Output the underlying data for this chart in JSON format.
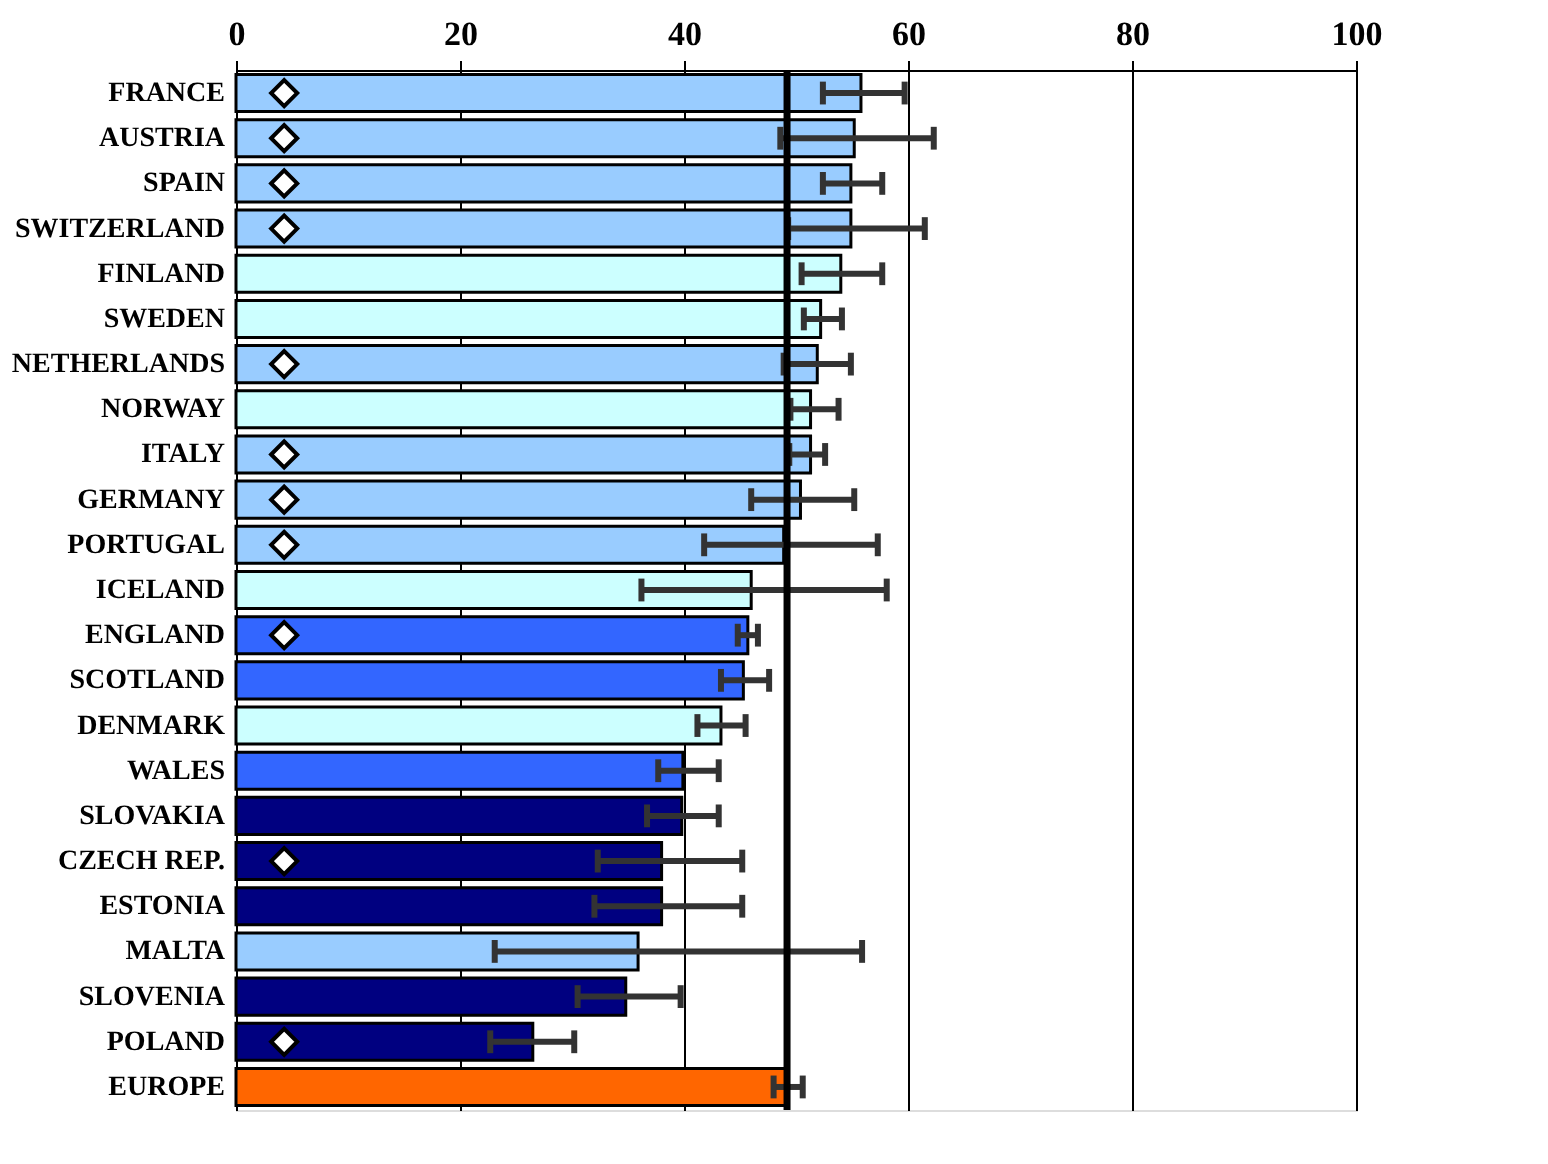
{
  "chart_data": {
    "type": "bar",
    "orientation": "horizontal",
    "categories": [
      "FRANCE",
      "AUSTRIA",
      "SPAIN",
      "SWITZERLAND",
      "FINLAND",
      "SWEDEN",
      "NETHERLANDS",
      "NORWAY",
      "ITALY",
      "GERMANY",
      "PORTUGAL",
      "ICELAND",
      "ENGLAND",
      "SCOTLAND",
      "DENMARK",
      "WALES",
      "SLOVAKIA",
      "CZECH REP.",
      "ESTONIA",
      "MALTA",
      "SLOVENIA",
      "POLAND",
      "EUROPE"
    ],
    "series": [
      {
        "type": "bar",
        "values": [
          55.8,
          55.2,
          54.9,
          54.9,
          54.0,
          52.2,
          51.9,
          51.3,
          51.3,
          50.4,
          48.9,
          46.0,
          45.7,
          45.3,
          43.3,
          39.9,
          39.8,
          38.0,
          38.0,
          35.9,
          34.8,
          26.5,
          49.1
        ],
        "colors": [
          "#99ccff",
          "#99ccff",
          "#99ccff",
          "#99ccff",
          "#ccffff",
          "#ccffff",
          "#99ccff",
          "#ccffff",
          "#99ccff",
          "#99ccff",
          "#99ccff",
          "#ccffff",
          "#3366ff",
          "#3366ff",
          "#ccffff",
          "#3366ff",
          "#000080",
          "#000080",
          "#000080",
          "#99ccff",
          "#000080",
          "#000080",
          "#ff6600"
        ],
        "errors": [
          [
            52.4,
            59.7
          ],
          [
            48.6,
            62.3
          ],
          [
            52.4,
            57.7
          ],
          [
            49.3,
            61.5
          ],
          [
            50.5,
            57.7
          ],
          [
            50.7,
            54.1
          ],
          [
            48.9,
            54.9
          ],
          [
            49.5,
            53.8
          ],
          [
            49.4,
            52.6
          ],
          [
            46.0,
            55.2
          ],
          [
            41.8,
            57.3
          ],
          [
            36.2,
            58.1
          ],
          [
            44.8,
            46.6
          ],
          [
            43.3,
            47.6
          ],
          [
            41.2,
            45.5
          ],
          [
            37.7,
            43.1
          ],
          [
            36.7,
            43.1
          ],
          [
            32.3,
            45.2
          ],
          [
            32.0,
            45.2
          ],
          [
            23.1,
            55.9
          ],
          [
            30.5,
            39.7
          ],
          [
            22.7,
            30.2
          ],
          [
            48.0,
            50.6
          ]
        ]
      },
      {
        "type": "scatter",
        "marker": "diamond",
        "color": "#ffffff",
        "x": [
          "FRANCE",
          "AUSTRIA",
          "SPAIN",
          "SWITZERLAND",
          "NETHERLANDS",
          "ITALY",
          "GERMANY",
          "PORTUGAL",
          "ENGLAND",
          "CZECH REP.",
          "POLAND"
        ],
        "values": [
          4.3,
          4.3,
          4.3,
          4.3,
          4.3,
          4.3,
          4.3,
          4.3,
          4.3,
          4.3,
          4.3
        ]
      }
    ],
    "ref_lines": [
      {
        "axis": "x",
        "value": 49.2,
        "color": "#000000"
      }
    ],
    "xlim": [
      0,
      100
    ],
    "xticks": [
      0,
      20,
      40,
      60,
      80,
      100
    ],
    "grid": "x"
  }
}
